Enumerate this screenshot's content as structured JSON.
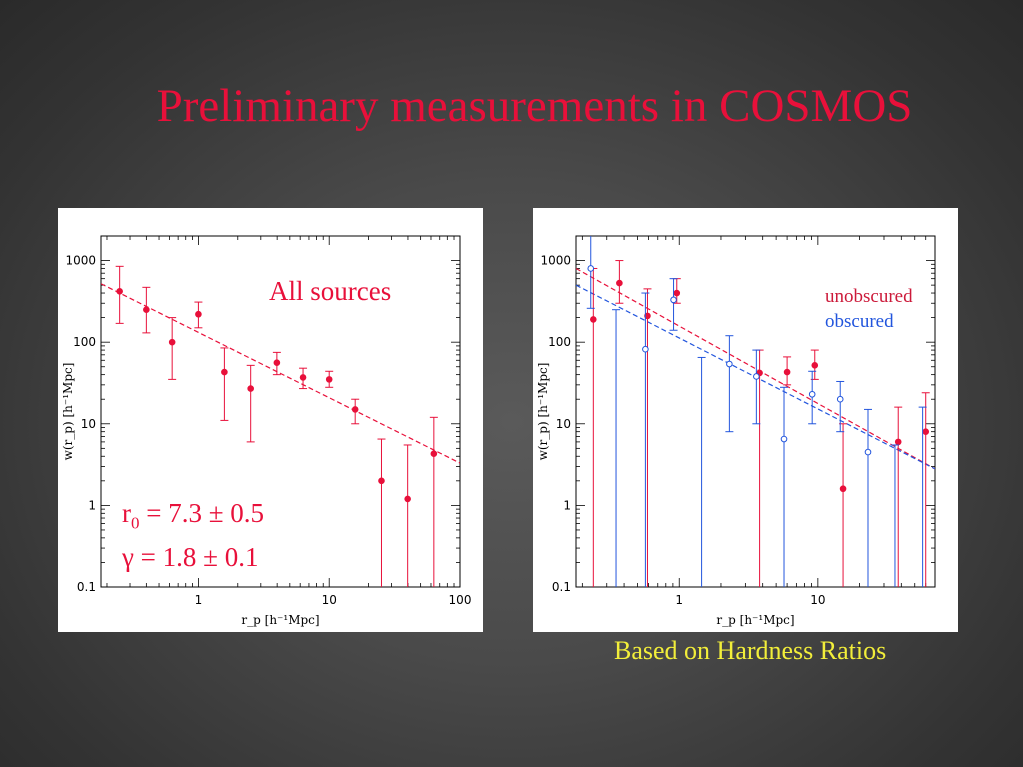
{
  "title": "Preliminary measurements in COSMOS",
  "caption": "Based on Hardness Ratios",
  "left_plot": {
    "annotation": "All sources",
    "fit": {
      "r0_symbol": "r",
      "r0_sub": "0",
      "r0_value": " = 7.3 ± 0.5",
      "gamma_line": "γ = 1.8 ± 0.1"
    }
  },
  "right_plot": {
    "legend": {
      "unobscured": "unobscured",
      "obscured": "obscured"
    }
  },
  "colors": {
    "title": "#e8103a",
    "red_series": "#e8103a",
    "blue_series": "#2255dd",
    "caption": "#f2ee3a"
  },
  "chart_data": [
    {
      "type": "scatter",
      "xlabel": "r_p [h⁻¹Mpc]",
      "ylabel": "w(r_p) [h⁻¹Mpc]",
      "x_scale": "log",
      "y_scale": "log",
      "xlim": [
        0.18,
        100
      ],
      "ylim": [
        0.1,
        2000
      ],
      "x_ticks": [
        1,
        10,
        100
      ],
      "y_ticks": [
        0.1,
        1,
        10,
        100,
        1000
      ],
      "series": [
        {
          "color": "#e8103a",
          "x": [
            0.25,
            0.4,
            0.63,
            1.0,
            1.58,
            2.51,
            3.98,
            6.31,
            10.0,
            15.8,
            25.1,
            39.8,
            63.1
          ],
          "y": [
            420,
            250,
            100,
            220,
            43,
            27,
            56,
            37,
            35,
            15,
            2.0,
            1.2,
            4.3
          ],
          "ylo": [
            170,
            130,
            35,
            150,
            11,
            6,
            40,
            27,
            28,
            10,
            0.1,
            0.1,
            0.1
          ],
          "yhi": [
            850,
            470,
            200,
            310,
            85,
            52,
            75,
            48,
            44,
            20,
            6.5,
            5.5,
            12
          ]
        }
      ],
      "fit_lines": [
        {
          "color": "#e8103a",
          "x": [
            0.18,
            100
          ],
          "y": [
            520,
            3.3
          ]
        }
      ]
    },
    {
      "type": "scatter",
      "xlabel": "r_p [h⁻¹Mpc]",
      "ylabel": "w(r_p) [h⁻¹Mpc]",
      "x_scale": "log",
      "y_scale": "log",
      "xlim": [
        0.18,
        70
      ],
      "ylim": [
        0.1,
        2000
      ],
      "x_ticks": [
        1,
        10
      ],
      "y_ticks": [
        0.1,
        1,
        10,
        100,
        1000
      ],
      "series": [
        {
          "color": "#e8103a",
          "marker": "filled",
          "x": [
            0.24,
            0.37,
            0.59,
            0.96,
            3.8,
            6.0,
            9.5,
            15.2,
            38,
            60
          ],
          "y": [
            190,
            530,
            210,
            400,
            42,
            43,
            52,
            1.6,
            6.0,
            8.0
          ],
          "ylo": [
            0.1,
            300,
            0.1,
            300,
            0.1,
            30,
            35,
            0.1,
            0.1,
            0.1
          ],
          "yhi": [
            800,
            1000,
            450,
            600,
            80,
            66,
            80,
            10,
            16,
            24
          ]
        },
        {
          "color": "#2255dd",
          "marker": "open",
          "x": [
            0.23,
            0.35,
            0.57,
            0.91,
            1.45,
            2.3,
            3.6,
            5.7,
            9.1,
            14.5,
            23,
            36,
            57
          ],
          "y": [
            800,
            0.1,
            82,
            330,
            0.1,
            54,
            38,
            6.5,
            23,
            20,
            4.5,
            0.1,
            0.1
          ],
          "ylo": [
            260,
            0.1,
            0.1,
            140,
            0.1,
            8,
            10,
            0.1,
            10,
            8,
            0.1,
            0.1,
            0.1
          ],
          "yhi": [
            2000,
            250,
            400,
            600,
            65,
            120,
            80,
            28,
            44,
            33,
            15,
            5.5,
            16
          ]
        }
      ],
      "fit_lines": [
        {
          "color": "#e8103a",
          "x": [
            0.18,
            70
          ],
          "y": [
            800,
            2.8
          ]
        },
        {
          "color": "#2255dd",
          "x": [
            0.18,
            70
          ],
          "y": [
            500,
            2.8
          ]
        }
      ]
    }
  ]
}
